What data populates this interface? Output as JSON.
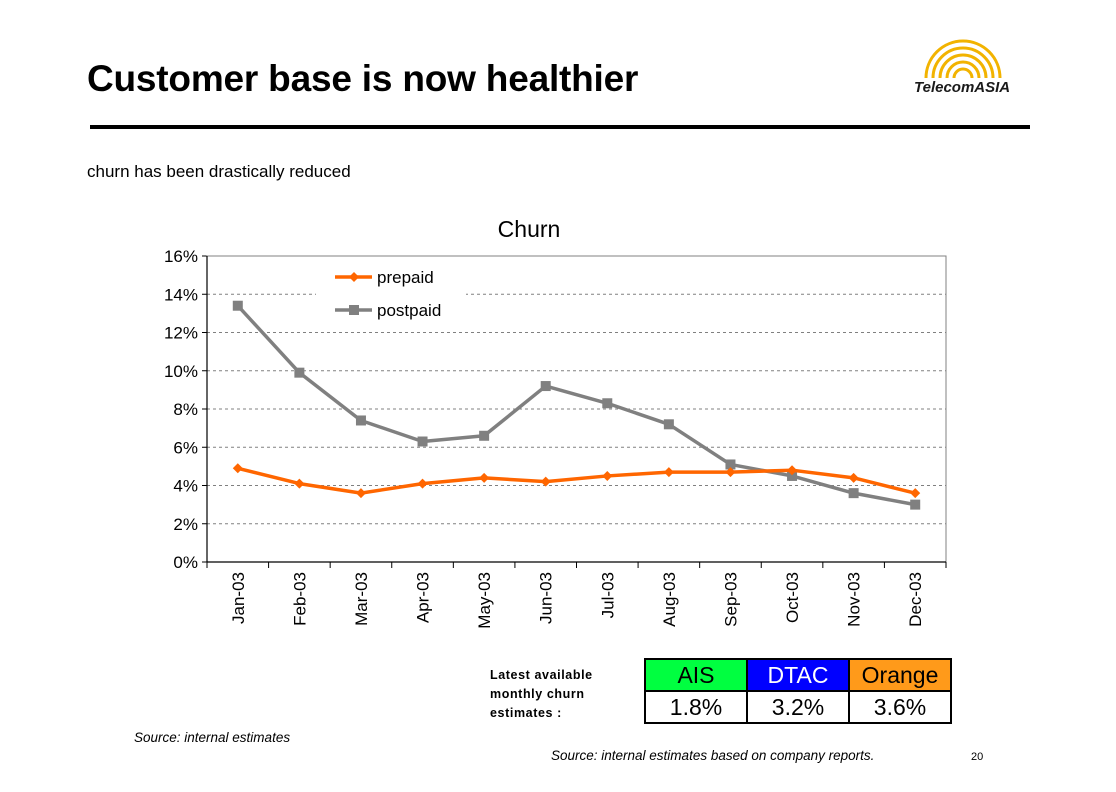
{
  "slide": {
    "title": "Customer base is now healthier",
    "subtitle": "churn has been drastically reduced",
    "logo_text": "TelecomASIA",
    "source_left": "Source: internal estimates",
    "source_right": "Source: internal estimates based on company reports.",
    "page_number": "20"
  },
  "estimates": {
    "label": "Latest available monthly churn estimates :",
    "headers": [
      "AIS",
      "DTAC",
      "Orange"
    ],
    "values": [
      "1.8%",
      "3.2%",
      "3.6%"
    ],
    "header_colors": [
      "#00ff40",
      "#0000ff",
      "#ff9a1a"
    ]
  },
  "chart_data": {
    "type": "line",
    "title": "Churn",
    "categories": [
      "Jan-03",
      "Feb-03",
      "Mar-03",
      "Apr-03",
      "May-03",
      "Jun-03",
      "Jul-03",
      "Aug-03",
      "Sep-03",
      "Oct-03",
      "Nov-03",
      "Dec-03"
    ],
    "yticks": [
      "0%",
      "2%",
      "4%",
      "6%",
      "8%",
      "10%",
      "12%",
      "14%",
      "16%"
    ],
    "ylim": [
      0,
      16
    ],
    "grid": true,
    "legend_position": "top-left",
    "series": [
      {
        "name": "prepaid",
        "color": "#ff6600",
        "marker": "diamond",
        "values": [
          4.9,
          4.1,
          3.6,
          4.1,
          4.4,
          4.2,
          4.5,
          4.7,
          4.7,
          4.8,
          4.4,
          3.6
        ]
      },
      {
        "name": "postpaid",
        "color": "#808080",
        "marker": "square",
        "values": [
          13.4,
          9.9,
          7.4,
          6.3,
          6.6,
          9.2,
          8.3,
          7.2,
          5.1,
          4.5,
          3.6,
          3.0
        ]
      }
    ]
  }
}
